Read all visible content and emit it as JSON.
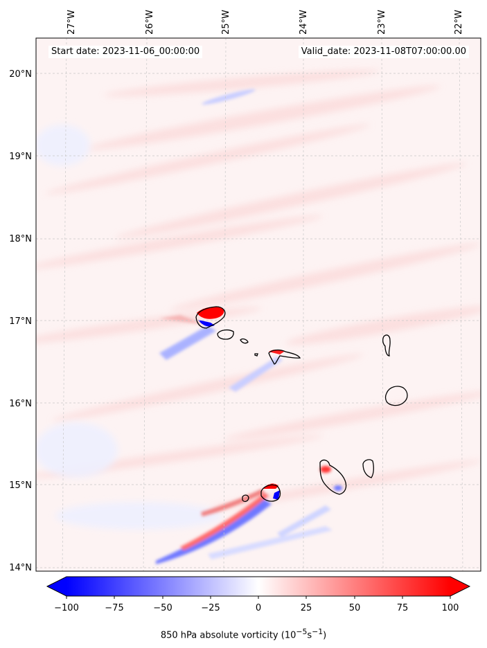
{
  "header": {
    "start_date": "Start date: 2023-11-06_00:00:00",
    "valid_date": "Valid_date: 2023-11-08T07:00:00.00"
  },
  "map": {
    "lon_ticks": [
      "27°W",
      "26°W",
      "25°W",
      "24°W",
      "23°W",
      "22°W"
    ],
    "lat_ticks": [
      "20°N",
      "19°N",
      "18°N",
      "17°N",
      "16°N",
      "15°N",
      "14°N"
    ]
  },
  "colorbar": {
    "ticks": [
      "−100",
      "−75",
      "−50",
      "−25",
      "0",
      "25",
      "50",
      "75",
      "100"
    ],
    "label_text": "850 hPa absolute vorticity (10",
    "label_exp1": "−5",
    "label_mid": "s",
    "label_exp2": "−1",
    "label_end": ")",
    "min_color": "#0000ff",
    "mid_color": "#ffffff",
    "max_color": "#ff0000"
  }
}
